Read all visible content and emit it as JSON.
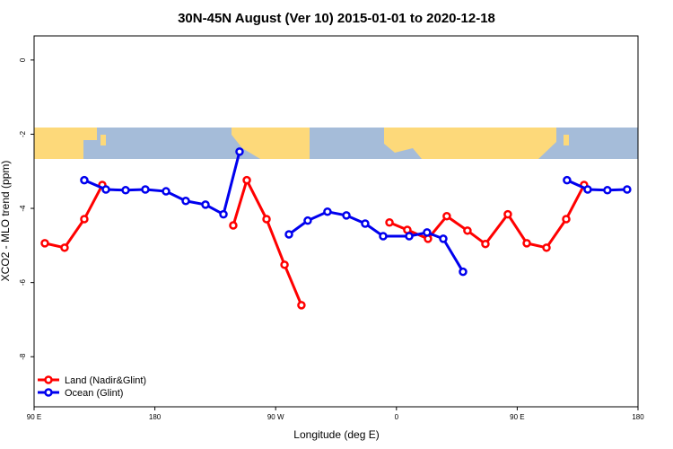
{
  "chart_data": {
    "type": "line",
    "title": "30N-45N August (Ver 10)   2015-01-01 to 2020-12-18",
    "x_label": "Longitude (deg E)",
    "y_label": "XCO2 - MLO trend (ppm)",
    "xlim": [
      90,
      540
    ],
    "ylim": [
      -9.35,
      0.65
    ],
    "xticks": [
      {
        "value": 90,
        "label": "90 E"
      },
      180,
      {
        "value": 270,
        "label": "90 W"
      },
      {
        "value": 360,
        "label": "0"
      },
      {
        "value": 450,
        "label": "90 E"
      },
      {
        "value": 540,
        "label": "180"
      }
    ],
    "yticks": [
      0,
      -2,
      -4,
      -6,
      -8
    ],
    "legend": "bottom-left",
    "series": [
      {
        "name": "Land (Nadir&Glint)",
        "color": "#ff0000",
        "x": [
          98.0,
          112.7,
          127.4,
          140.8,
          null,
          238.4,
          248.5,
          263.2,
          276.6,
          289.2,
          null,
          354.8,
          368.1,
          383.5,
          397.5,
          412.9,
          426.3,
          443.0,
          457.1,
          471.8,
          486.5,
          499.8
        ],
        "values": [
          -4.94,
          -5.06,
          -4.29,
          -3.37,
          null,
          -4.46,
          -3.24,
          -4.29,
          -5.52,
          -6.61,
          null,
          -4.38,
          -4.58,
          -4.82,
          -4.21,
          -4.6,
          -4.96,
          -4.16,
          -4.94,
          -5.06,
          -4.29,
          -3.37
        ]
      },
      {
        "name": "Ocean (Glint)",
        "color": "#0000ee",
        "x": [
          127.4,
          143.5,
          158.2,
          172.9,
          188.3,
          203.0,
          217.7,
          231.1,
          243.1,
          null,
          279.9,
          293.9,
          308.6,
          322.7,
          336.7,
          350.1,
          369.5,
          382.8,
          394.9,
          409.6,
          null,
          487.1,
          502.5,
          517.2,
          531.9
        ],
        "values": [
          -3.24,
          -3.49,
          -3.51,
          -3.49,
          -3.54,
          -3.8,
          -3.9,
          -4.16,
          -2.47,
          null,
          -4.7,
          -4.33,
          -4.09,
          -4.19,
          -4.41,
          -4.75,
          -4.75,
          -4.65,
          -4.82,
          -5.71,
          null,
          -3.24,
          -3.49,
          -3.51,
          -3.49
        ]
      }
    ]
  }
}
